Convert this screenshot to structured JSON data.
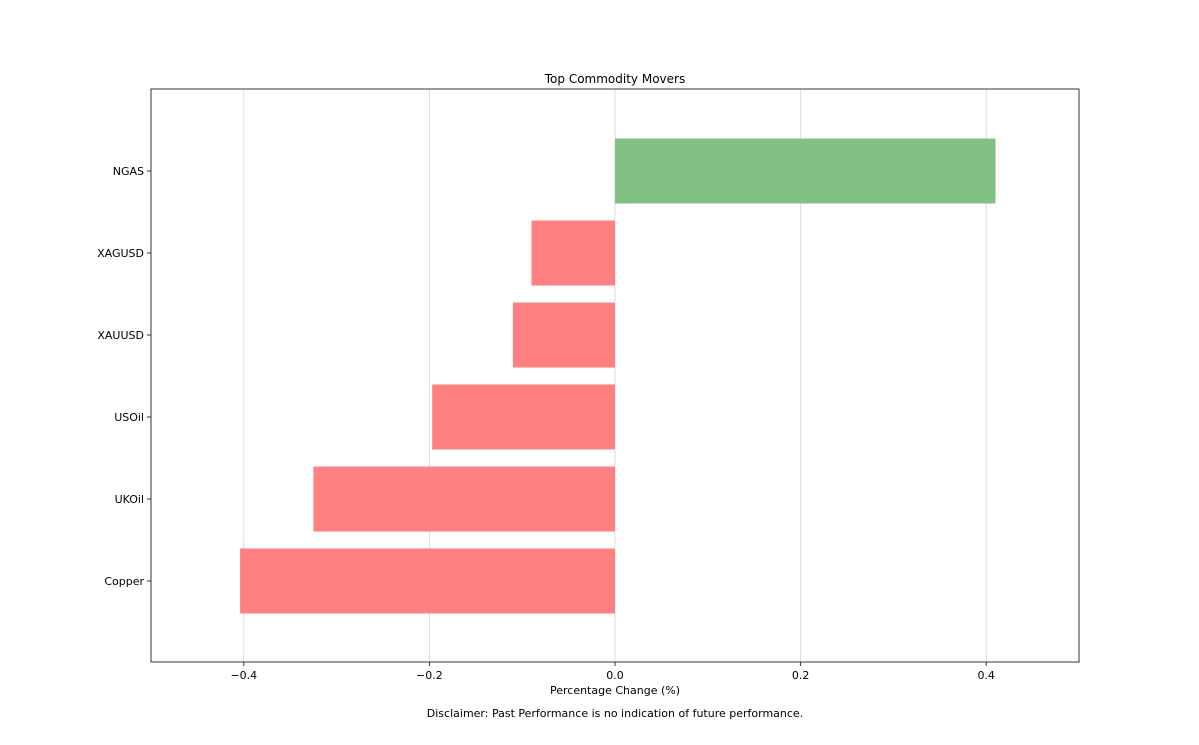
{
  "chart_data": {
    "type": "bar",
    "orientation": "horizontal",
    "title": "Top Commodity Movers",
    "xlabel": "Percentage Change (%)",
    "ylabel": "",
    "categories": [
      "Copper",
      "UKOil",
      "USOil",
      "XAUUSD",
      "XAGUSD",
      "NGAS"
    ],
    "values": [
      -0.404,
      -0.325,
      -0.197,
      -0.11,
      -0.09,
      0.41
    ],
    "xlim": [
      -0.5,
      0.5
    ],
    "xticks": [
      -0.4,
      -0.2,
      0.0,
      0.2,
      0.4
    ],
    "xtick_labels": [
      "−0.4",
      "−0.2",
      "0.0",
      "0.2",
      "0.4"
    ],
    "grid": "vertical",
    "colors": {
      "positive": "#81c184",
      "negative": "#ff8080",
      "grid": "#dddddd",
      "frame": "#333333"
    },
    "footnote": "Disclaimer: Past Performance is no indication of future performance."
  }
}
